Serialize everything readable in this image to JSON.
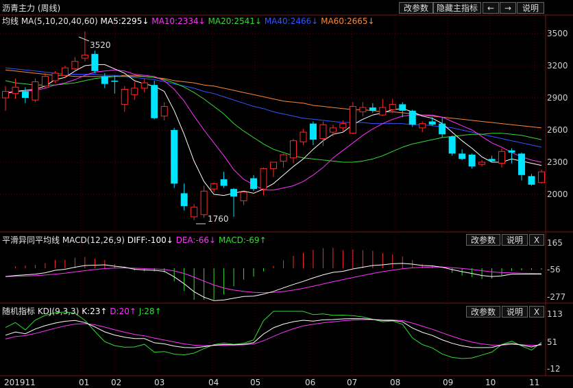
{
  "header": {
    "title": "沥青主力 (周线)",
    "buttons": [
      "改参数",
      "隐藏主指标",
      "←",
      "→",
      "说明"
    ]
  },
  "main_panel": {
    "indicator_label": "均线 MA(5,10,20,40,60)",
    "ma_values": [
      {
        "label": "MA5:2295↓",
        "color": "#ffffff"
      },
      {
        "label": "MA10:2334↓",
        "color": "#ff33ff"
      },
      {
        "label": "MA20:2541↓",
        "color": "#33dd33"
      },
      {
        "label": "MA40:2466↓",
        "color": "#3355ff"
      },
      {
        "label": "MA60:2665↓",
        "color": "#ff8833"
      }
    ],
    "y_ticks": [
      "3500",
      "3200",
      "2900",
      "2600",
      "2300",
      "2000"
    ],
    "high_marker": "3520",
    "low_marker": "1760"
  },
  "macd_panel": {
    "label": "平滑异同平均线 MACD(12,26,9)",
    "diff": "DIFF:-100↓",
    "dea": "DEA:-66↓",
    "macd": "MACD:-69↑",
    "buttons": [
      "改参数",
      "说明",
      "X"
    ],
    "y_ticks": [
      "165",
      "-56",
      "-277"
    ]
  },
  "kdj_panel": {
    "label": "随机指标 KDJ(9,3,3)",
    "k": "K:23↑",
    "d": "D:20↑",
    "j": "J:28↑",
    "buttons": [
      "改参数",
      "说明",
      "X"
    ],
    "y_ticks": [
      "113",
      "51",
      "-12"
    ]
  },
  "x_axis": [
    "201911",
    "01",
    "02",
    "03",
    "04",
    "05",
    "06",
    "07",
    "08",
    "09",
    "10",
    "11"
  ],
  "colors": {
    "up": "#ff2a2a",
    "down": "#00e5ff",
    "frame": "#7a1515"
  },
  "chart_data": {
    "type": "candlestick",
    "y_range": [
      1700,
      3600
    ],
    "candles": [
      {
        "o": 2900,
        "h": 3010,
        "l": 2780,
        "c": 2960
      },
      {
        "o": 2940,
        "h": 3080,
        "l": 2890,
        "c": 3000
      },
      {
        "o": 2960,
        "h": 3000,
        "l": 2850,
        "c": 2900
      },
      {
        "o": 2880,
        "h": 3080,
        "l": 2860,
        "c": 3050
      },
      {
        "o": 3010,
        "h": 3130,
        "l": 2990,
        "c": 3100
      },
      {
        "o": 3060,
        "h": 3150,
        "l": 3040,
        "c": 3130
      },
      {
        "o": 3110,
        "h": 3200,
        "l": 3090,
        "c": 3180
      },
      {
        "o": 3170,
        "h": 3280,
        "l": 3150,
        "c": 3240
      },
      {
        "o": 3270,
        "h": 3520,
        "l": 3240,
        "c": 3300
      },
      {
        "o": 3310,
        "h": 3340,
        "l": 3130,
        "c": 3150
      },
      {
        "o": 3100,
        "h": 3130,
        "l": 2990,
        "c": 3030
      },
      {
        "o": 3060,
        "h": 3110,
        "l": 2940,
        "c": 3050
      },
      {
        "o": 2840,
        "h": 3010,
        "l": 2770,
        "c": 2980
      },
      {
        "o": 2930,
        "h": 3050,
        "l": 2880,
        "c": 2990
      },
      {
        "o": 2990,
        "h": 3080,
        "l": 2950,
        "c": 3040
      },
      {
        "o": 3020,
        "h": 3060,
        "l": 2700,
        "c": 2710
      },
      {
        "o": 2730,
        "h": 2860,
        "l": 2690,
        "c": 2820
      },
      {
        "o": 2600,
        "h": 2620,
        "l": 2060,
        "c": 2100
      },
      {
        "o": 2010,
        "h": 2100,
        "l": 1850,
        "c": 1890
      },
      {
        "o": 1790,
        "h": 1910,
        "l": 1760,
        "c": 1880
      },
      {
        "o": 1810,
        "h": 2080,
        "l": 1780,
        "c": 2030
      },
      {
        "o": 2050,
        "h": 2110,
        "l": 2020,
        "c": 2100
      },
      {
        "o": 2140,
        "h": 2210,
        "l": 2060,
        "c": 2080
      },
      {
        "o": 2050,
        "h": 2060,
        "l": 1790,
        "c": 1980
      },
      {
        "o": 1940,
        "h": 2010,
        "l": 1900,
        "c": 2020
      },
      {
        "o": 2150,
        "h": 2180,
        "l": 2030,
        "c": 2050
      },
      {
        "o": 2050,
        "h": 2250,
        "l": 1990,
        "c": 2240
      },
      {
        "o": 2240,
        "h": 2290,
        "l": 2160,
        "c": 2300
      },
      {
        "o": 2310,
        "h": 2380,
        "l": 2250,
        "c": 2370
      },
      {
        "o": 2340,
        "h": 2520,
        "l": 2290,
        "c": 2500
      },
      {
        "o": 2490,
        "h": 2610,
        "l": 2460,
        "c": 2580
      },
      {
        "o": 2660,
        "h": 2680,
        "l": 2460,
        "c": 2510
      },
      {
        "o": 2520,
        "h": 2680,
        "l": 2450,
        "c": 2650
      },
      {
        "o": 2580,
        "h": 2650,
        "l": 2540,
        "c": 2620
      },
      {
        "o": 2620,
        "h": 2690,
        "l": 2590,
        "c": 2660
      },
      {
        "o": 2570,
        "h": 2860,
        "l": 2560,
        "c": 2820
      },
      {
        "o": 2770,
        "h": 2860,
        "l": 2730,
        "c": 2810
      },
      {
        "o": 2810,
        "h": 2850,
        "l": 2760,
        "c": 2780
      },
      {
        "o": 2740,
        "h": 2890,
        "l": 2730,
        "c": 2810
      },
      {
        "o": 2790,
        "h": 2890,
        "l": 2760,
        "c": 2840
      },
      {
        "o": 2840,
        "h": 2860,
        "l": 2720,
        "c": 2780
      },
      {
        "o": 2780,
        "h": 2790,
        "l": 2630,
        "c": 2650
      },
      {
        "o": 2620,
        "h": 2680,
        "l": 2580,
        "c": 2660
      },
      {
        "o": 2680,
        "h": 2720,
        "l": 2640,
        "c": 2650
      },
      {
        "o": 2660,
        "h": 2720,
        "l": 2530,
        "c": 2560
      },
      {
        "o": 2540,
        "h": 2550,
        "l": 2360,
        "c": 2380
      },
      {
        "o": 2380,
        "h": 2420,
        "l": 2320,
        "c": 2330
      },
      {
        "o": 2370,
        "h": 2380,
        "l": 2240,
        "c": 2260
      },
      {
        "o": 2280,
        "h": 2320,
        "l": 2260,
        "c": 2300
      },
      {
        "o": 2330,
        "h": 2360,
        "l": 2300,
        "c": 2310
      },
      {
        "o": 2290,
        "h": 2430,
        "l": 2250,
        "c": 2400
      },
      {
        "o": 2410,
        "h": 2430,
        "l": 2290,
        "c": 2390
      },
      {
        "o": 2380,
        "h": 2390,
        "l": 2130,
        "c": 2180
      },
      {
        "o": 2170,
        "h": 2190,
        "l": 2080,
        "c": 2090
      },
      {
        "o": 2110,
        "h": 2230,
        "l": 2100,
        "c": 2210
      }
    ],
    "ma5": [
      2940,
      2960,
      2970,
      2980,
      3010,
      3070,
      3090,
      3150,
      3200,
      3210,
      3210,
      3170,
      3130,
      3060,
      3030,
      3010,
      2960,
      2780,
      2560,
      2310,
      2120,
      2000,
      1990,
      2010,
      2030,
      2010,
      2050,
      2100,
      2180,
      2260,
      2330,
      2420,
      2500,
      2560,
      2580,
      2650,
      2700,
      2740,
      2760,
      2790,
      2800,
      2770,
      2730,
      2710,
      2660,
      2580,
      2500,
      2430,
      2350,
      2300,
      2300,
      2330,
      2310,
      2290,
      2270
    ],
    "ma10": [
      2950,
      2960,
      2960,
      2970,
      2990,
      3020,
      3040,
      3070,
      3110,
      3140,
      3150,
      3160,
      3150,
      3120,
      3110,
      3100,
      3060,
      2980,
      2870,
      2730,
      2600,
      2480,
      2360,
      2230,
      2140,
      2090,
      2040,
      2040,
      2060,
      2080,
      2120,
      2180,
      2250,
      2340,
      2410,
      2480,
      2550,
      2610,
      2660,
      2700,
      2730,
      2740,
      2740,
      2740,
      2720,
      2680,
      2640,
      2600,
      2540,
      2480,
      2440,
      2390,
      2350,
      2320,
      2300
    ],
    "ma20": [
      3060,
      3040,
      3030,
      3020,
      3020,
      3020,
      3030,
      3040,
      3060,
      3080,
      3090,
      3100,
      3100,
      3100,
      3100,
      3090,
      3070,
      3040,
      3000,
      2950,
      2890,
      2820,
      2750,
      2660,
      2590,
      2530,
      2470,
      2420,
      2390,
      2360,
      2340,
      2330,
      2320,
      2310,
      2300,
      2300,
      2310,
      2330,
      2360,
      2400,
      2440,
      2470,
      2490,
      2510,
      2530,
      2540,
      2550,
      2560,
      2560,
      2570,
      2570,
      2560,
      2550,
      2530,
      2510
    ],
    "ma40": [
      3180,
      3170,
      3160,
      3150,
      3140,
      3130,
      3120,
      3120,
      3120,
      3120,
      3110,
      3110,
      3100,
      3090,
      3080,
      3070,
      3050,
      3030,
      3010,
      2990,
      2960,
      2940,
      2910,
      2880,
      2850,
      2820,
      2800,
      2770,
      2750,
      2730,
      2710,
      2700,
      2690,
      2680,
      2670,
      2670,
      2670,
      2660,
      2660,
      2660,
      2660,
      2650,
      2650,
      2640,
      2630,
      2620,
      2600,
      2580,
      2560,
      2540,
      2520,
      2500,
      2480,
      2460,
      2440
    ],
    "ma60": [
      3160,
      3150,
      3140,
      3130,
      3120,
      3110,
      3110,
      3100,
      3100,
      3100,
      3100,
      3100,
      3110,
      3110,
      3100,
      3090,
      3080,
      3060,
      3050,
      3040,
      3020,
      3010,
      2990,
      2970,
      2950,
      2930,
      2910,
      2890,
      2870,
      2860,
      2850,
      2830,
      2820,
      2810,
      2800,
      2790,
      2790,
      2780,
      2770,
      2770,
      2760,
      2750,
      2740,
      2730,
      2720,
      2710,
      2700,
      2690,
      2680,
      2670,
      2660,
      2650,
      2640,
      2630,
      2620
    ]
  }
}
